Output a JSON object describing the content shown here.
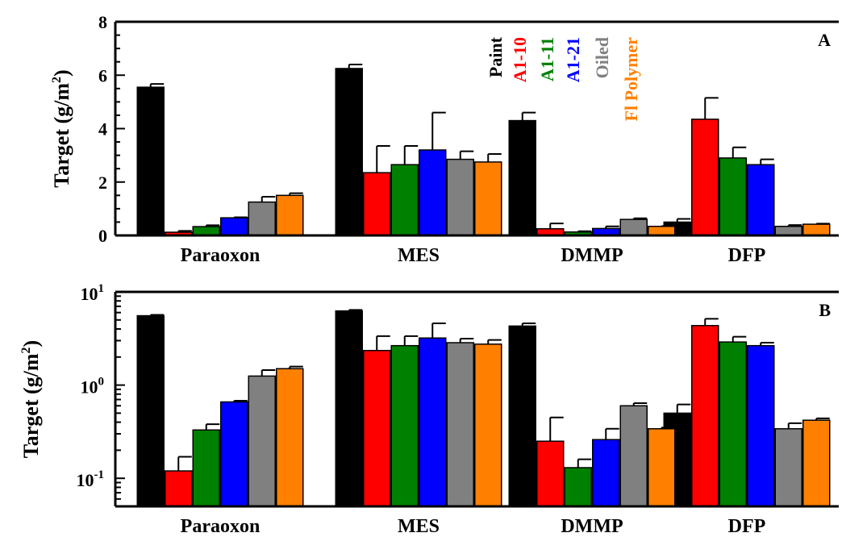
{
  "chart_data": [
    {
      "panel": "A",
      "type": "bar",
      "yscale": "linear",
      "ylabel": "Target (g/m",
      "ylabel_sup": "2",
      "ylabel_close": ")",
      "ylim": [
        0,
        8
      ],
      "yticks": [
        0,
        2,
        4,
        6,
        8
      ],
      "ytick_labels": [
        "0",
        "2",
        "4",
        "6",
        "8"
      ],
      "panel_label": "A",
      "categories": [
        "Paraoxon",
        "MES",
        "DMMP",
        "DFP"
      ],
      "legend": [
        "Paint",
        "A1-10",
        "A1-11",
        "A1-21",
        "Oiled",
        "Fl Polymer"
      ],
      "legend_placement": "top-center, rotated vertical labels",
      "series": [
        {
          "name": "Paint",
          "color": "#000000",
          "values": [
            5.55,
            6.25,
            4.3,
            0.5
          ],
          "errors": [
            0.12,
            0.15,
            0.3,
            0.12
          ]
        },
        {
          "name": "A1-10",
          "color": "#ff0000",
          "values": [
            0.12,
            2.35,
            0.25,
            4.35
          ],
          "errors": [
            0.05,
            1.0,
            0.2,
            0.8
          ]
        },
        {
          "name": "A1-11",
          "color": "#008000",
          "values": [
            0.33,
            2.65,
            0.13,
            2.9
          ],
          "errors": [
            0.05,
            0.7,
            0.03,
            0.4
          ]
        },
        {
          "name": "A1-21",
          "color": "#0000ff",
          "values": [
            0.66,
            3.2,
            0.26,
            2.65
          ],
          "errors": [
            0.02,
            1.4,
            0.08,
            0.2
          ]
        },
        {
          "name": "Oiled",
          "color": "#808080",
          "values": [
            1.25,
            2.85,
            0.6,
            0.34
          ],
          "errors": [
            0.2,
            0.3,
            0.04,
            0.05
          ]
        },
        {
          "name": "Fl Polymer",
          "color": "#ff8000",
          "values": [
            1.5,
            2.75,
            0.34,
            0.42
          ],
          "errors": [
            0.08,
            0.3,
            0.01,
            0.02
          ]
        }
      ]
    },
    {
      "panel": "B",
      "type": "bar",
      "yscale": "log",
      "ylabel": "Target (g/m",
      "ylabel_sup": "2",
      "ylabel_close": ")",
      "ylim": [
        0.05,
        10
      ],
      "yticks": [
        0.1,
        1,
        10
      ],
      "ytick_labels": [
        {
          "base": "10",
          "exp": "-1"
        },
        {
          "base": "10",
          "exp": "0"
        },
        {
          "base": "10",
          "exp": "1"
        }
      ],
      "panel_label": "B",
      "categories": [
        "Paraoxon",
        "MES",
        "DMMP",
        "DFP"
      ],
      "series": [
        {
          "name": "Paint",
          "color": "#000000",
          "values": [
            5.55,
            6.25,
            4.3,
            0.5
          ],
          "errors": [
            0.12,
            0.15,
            0.3,
            0.12
          ]
        },
        {
          "name": "A1-10",
          "color": "#ff0000",
          "values": [
            0.12,
            2.35,
            0.25,
            4.35
          ],
          "errors": [
            0.05,
            1.0,
            0.2,
            0.8
          ]
        },
        {
          "name": "A1-11",
          "color": "#008000",
          "values": [
            0.33,
            2.65,
            0.13,
            2.9
          ],
          "errors": [
            0.05,
            0.7,
            0.03,
            0.4
          ]
        },
        {
          "name": "A1-21",
          "color": "#0000ff",
          "values": [
            0.66,
            3.2,
            0.26,
            2.65
          ],
          "errors": [
            0.02,
            1.4,
            0.08,
            0.2
          ]
        },
        {
          "name": "Oiled",
          "color": "#808080",
          "values": [
            1.25,
            2.85,
            0.6,
            0.34
          ],
          "errors": [
            0.2,
            0.3,
            0.04,
            0.05
          ]
        },
        {
          "name": "Fl Polymer",
          "color": "#ff8000",
          "values": [
            1.5,
            2.75,
            0.34,
            0.42
          ],
          "errors": [
            0.08,
            0.3,
            0.01,
            0.02
          ]
        }
      ]
    }
  ]
}
